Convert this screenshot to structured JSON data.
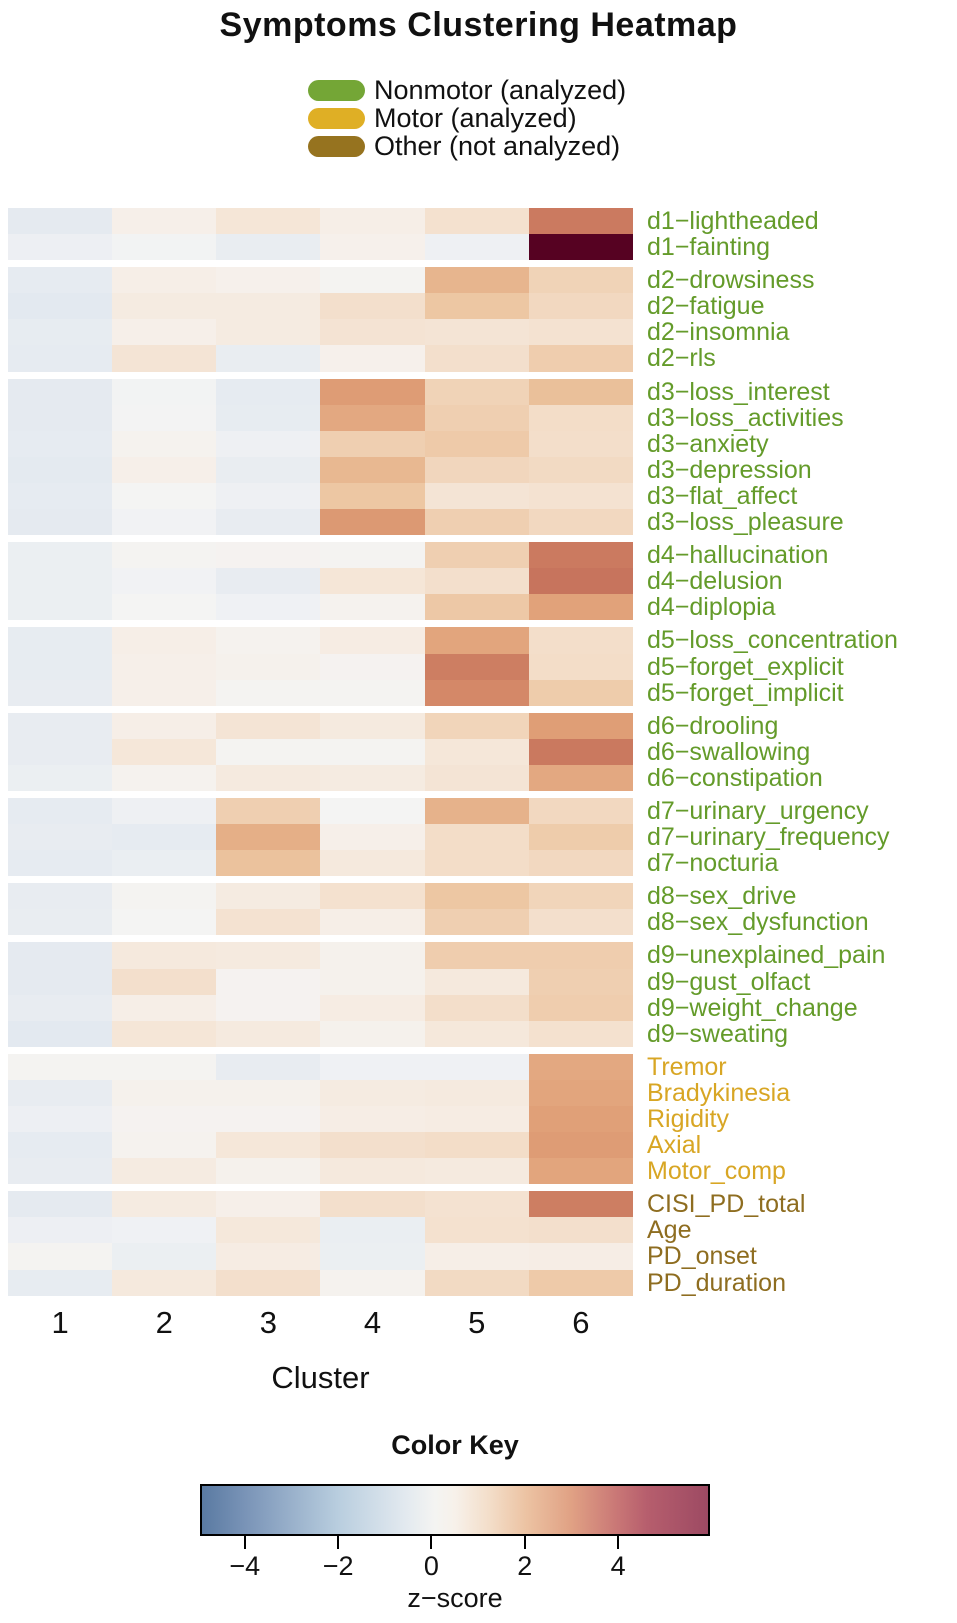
{
  "title": "Symptoms Clustering Heatmap",
  "legend": {
    "items": [
      {
        "name": "nonmotor",
        "label": "Nonmotor (analyzed)",
        "color": "#74a636"
      },
      {
        "name": "motor",
        "label": "Motor (analyzed)",
        "color": "#dfaf25"
      },
      {
        "name": "other",
        "label": "Other (not analyzed)",
        "color": "#96731f"
      }
    ]
  },
  "chart_data": {
    "type": "heatmap",
    "title": "Symptoms Clustering Heatmap",
    "xlabel": "Cluster",
    "x_categories": [
      "1",
      "2",
      "3",
      "4",
      "5",
      "6"
    ],
    "category_label_colors": {
      "nonmotor": "#649b2a",
      "motor": "#d8a624",
      "other": "#8e6d20"
    },
    "rows": [
      {
        "label": "d1−lightheaded",
        "block": "d1",
        "category": "nonmotor",
        "values": [
          -0.7,
          0.3,
          0.75,
          0.35,
          0.95,
          3.4
        ]
      },
      {
        "label": "d1−fainting",
        "block": "d1",
        "category": "nonmotor",
        "values": [
          -0.35,
          -0.1,
          -0.5,
          0.25,
          -0.3,
          8.5
        ]
      },
      {
        "label": "d2−drowsiness",
        "block": "d2",
        "category": "nonmotor",
        "values": [
          -0.65,
          0.35,
          0.25,
          0.05,
          2.1,
          1.4
        ]
      },
      {
        "label": "d2−fatigue",
        "block": "d2",
        "category": "nonmotor",
        "values": [
          -0.8,
          0.5,
          0.5,
          1.0,
          1.75,
          1.25
        ]
      },
      {
        "label": "d2−insomnia",
        "block": "d2",
        "category": "nonmotor",
        "values": [
          -0.6,
          0.3,
          0.5,
          0.85,
          0.8,
          0.9
        ]
      },
      {
        "label": "d2−rls",
        "block": "d2",
        "category": "nonmotor",
        "values": [
          -0.65,
          0.8,
          -0.5,
          0.25,
          1.0,
          1.55
        ]
      },
      {
        "label": "d3−loss_interest",
        "block": "d3",
        "category": "nonmotor",
        "values": [
          -0.7,
          -0.1,
          -0.65,
          2.55,
          1.4,
          1.9
        ]
      },
      {
        "label": "d3−loss_activities",
        "block": "d3",
        "category": "nonmotor",
        "values": [
          -0.7,
          -0.05,
          -0.6,
          2.3,
          1.5,
          1.1
        ]
      },
      {
        "label": "d3−anxiety",
        "block": "d3",
        "category": "nonmotor",
        "values": [
          -0.65,
          0.15,
          -0.3,
          1.5,
          1.65,
          1.05
        ]
      },
      {
        "label": "d3−depression",
        "block": "d3",
        "category": "nonmotor",
        "values": [
          -0.75,
          0.3,
          -0.5,
          2.05,
          1.3,
          1.2
        ]
      },
      {
        "label": "d3−flat_affect",
        "block": "d3",
        "category": "nonmotor",
        "values": [
          -0.65,
          0.0,
          -0.3,
          1.75,
          0.8,
          0.9
        ]
      },
      {
        "label": "d3−loss_pleasure",
        "block": "d3",
        "category": "nonmotor",
        "values": [
          -0.7,
          -0.15,
          -0.55,
          2.6,
          1.5,
          1.25
        ]
      },
      {
        "label": "d4−hallucination",
        "block": "d4",
        "category": "nonmotor",
        "values": [
          -0.4,
          0.05,
          0.1,
          0.05,
          1.5,
          3.4
        ]
      },
      {
        "label": "d4−delusion",
        "block": "d4",
        "category": "nonmotor",
        "values": [
          -0.4,
          -0.15,
          -0.55,
          0.75,
          1.0,
          3.6
        ]
      },
      {
        "label": "d4−diplopia",
        "block": "d4",
        "category": "nonmotor",
        "values": [
          -0.4,
          0.0,
          -0.25,
          0.15,
          1.7,
          2.4
        ]
      },
      {
        "label": "d5−loss_concentration",
        "block": "d5",
        "category": "nonmotor",
        "values": [
          -0.6,
          0.35,
          0.15,
          0.45,
          2.35,
          1.05
        ]
      },
      {
        "label": "d5−forget_explicit",
        "block": "d5",
        "category": "nonmotor",
        "values": [
          -0.6,
          0.3,
          0.2,
          0.1,
          3.3,
          1.1
        ]
      },
      {
        "label": "d5−forget_implicit",
        "block": "d5",
        "category": "nonmotor",
        "values": [
          -0.55,
          0.3,
          0.05,
          0.05,
          3.0,
          1.6
        ]
      },
      {
        "label": "d6−drooling",
        "block": "d6",
        "category": "nonmotor",
        "values": [
          -0.55,
          0.35,
          0.8,
          0.55,
          1.35,
          2.5
        ]
      },
      {
        "label": "d6−swallowing",
        "block": "d6",
        "category": "nonmotor",
        "values": [
          -0.55,
          0.7,
          0.05,
          0.05,
          0.7,
          3.45
        ]
      },
      {
        "label": "d6−constipation",
        "block": "d6",
        "category": "nonmotor",
        "values": [
          -0.4,
          0.15,
          0.55,
          0.5,
          0.8,
          2.3
        ]
      },
      {
        "label": "d7−urinary_urgency",
        "block": "d7",
        "category": "nonmotor",
        "values": [
          -0.65,
          -0.3,
          1.5,
          0.0,
          2.15,
          1.25
        ]
      },
      {
        "label": "d7−urinary_frequency",
        "block": "d7",
        "category": "nonmotor",
        "values": [
          -0.55,
          -0.65,
          2.2,
          0.3,
          1.1,
          1.6
        ]
      },
      {
        "label": "d7−nocturia",
        "block": "d7",
        "category": "nonmotor",
        "values": [
          -0.65,
          -0.45,
          1.85,
          0.6,
          1.1,
          1.25
        ]
      },
      {
        "label": "d8−sex_drive",
        "block": "d8",
        "category": "nonmotor",
        "values": [
          -0.55,
          0.05,
          0.5,
          0.95,
          1.75,
          1.35
        ]
      },
      {
        "label": "d8−sex_dysfunction",
        "block": "d8",
        "category": "nonmotor",
        "values": [
          -0.5,
          0.0,
          0.9,
          0.35,
          1.5,
          1.0
        ]
      },
      {
        "label": "d9−unexplained_pain",
        "block": "d9",
        "category": "nonmotor",
        "values": [
          -0.7,
          0.6,
          0.55,
          0.2,
          1.55,
          1.55
        ]
      },
      {
        "label": "d9−gust_olfact",
        "block": "d9",
        "category": "nonmotor",
        "values": [
          -0.7,
          1.0,
          0.1,
          0.2,
          0.6,
          1.5
        ]
      },
      {
        "label": "d9−weight_change",
        "block": "d9",
        "category": "nonmotor",
        "values": [
          -0.55,
          0.35,
          0.1,
          0.45,
          1.05,
          1.55
        ]
      },
      {
        "label": "d9−sweating",
        "block": "d9",
        "category": "nonmotor",
        "values": [
          -0.8,
          0.75,
          0.55,
          0.2,
          0.65,
          0.95
        ]
      },
      {
        "label": "Tremor",
        "block": "motor",
        "category": "motor",
        "values": [
          0.05,
          0.05,
          -0.55,
          -0.25,
          -0.25,
          2.3
        ]
      },
      {
        "label": "Bradykinesia",
        "block": "motor",
        "category": "motor",
        "values": [
          -0.55,
          0.2,
          0.2,
          0.5,
          0.55,
          2.35
        ]
      },
      {
        "label": "Rigidity",
        "block": "motor",
        "category": "motor",
        "values": [
          -0.35,
          0.1,
          0.1,
          0.4,
          0.45,
          2.45
        ]
      },
      {
        "label": "Axial",
        "block": "motor",
        "category": "motor",
        "values": [
          -0.65,
          0.15,
          0.7,
          1.0,
          1.1,
          2.55
        ]
      },
      {
        "label": "Motor_comp",
        "block": "motor",
        "category": "motor",
        "values": [
          -0.55,
          0.5,
          0.2,
          0.6,
          0.55,
          2.35
        ]
      },
      {
        "label": "CISI_PD_total",
        "block": "other",
        "category": "other",
        "values": [
          -0.7,
          0.5,
          0.3,
          1.0,
          0.9,
          3.3
        ]
      },
      {
        "label": "Age",
        "block": "other",
        "category": "other",
        "values": [
          -0.35,
          -0.25,
          0.65,
          -0.45,
          0.95,
          1.0
        ]
      },
      {
        "label": "PD_onset",
        "block": "other",
        "category": "other",
        "values": [
          0.05,
          -0.4,
          0.45,
          -0.4,
          0.35,
          0.4
        ]
      },
      {
        "label": "PD_duration",
        "block": "other",
        "category": "other",
        "values": [
          -0.6,
          0.6,
          1.0,
          0.15,
          1.2,
          1.65
        ]
      }
    ],
    "value_color_stops": [
      [
        -5.0,
        "#4f75a0"
      ],
      [
        -2.0,
        "#b9cfdf"
      ],
      [
        -0.8,
        "#e3e9f0"
      ],
      [
        -0.5,
        "#e9edf1"
      ],
      [
        -0.25,
        "#eff1f4"
      ],
      [
        0.0,
        "#f4f4f3"
      ],
      [
        0.3,
        "#f6efe9"
      ],
      [
        0.6,
        "#f5e9dd"
      ],
      [
        0.9,
        "#f4e2d1"
      ],
      [
        1.2,
        "#f2dac3"
      ],
      [
        1.5,
        "#efcfb1"
      ],
      [
        1.8,
        "#ecc5a0"
      ],
      [
        2.1,
        "#e7b58e"
      ],
      [
        2.4,
        "#e1a27a"
      ],
      [
        2.7,
        "#da956f"
      ],
      [
        3.0,
        "#d48868"
      ],
      [
        3.4,
        "#cb7a60"
      ],
      [
        3.7,
        "#c5715c"
      ],
      [
        4.0,
        "#bc685f"
      ],
      [
        5.0,
        "#a34e62"
      ],
      [
        6.5,
        "#7c2f4a"
      ],
      [
        8.5,
        "#560222"
      ]
    ],
    "color_key": {
      "title": "Color Key",
      "axis_label": "z−score",
      "tick_values": [
        -4,
        -2,
        0,
        2,
        4
      ],
      "tick_labels": [
        "−4",
        "−2",
        "0",
        "2",
        "4"
      ],
      "range": [
        -4.96,
        5.97
      ],
      "gradient": [
        [
          0,
          "#5a7aa2"
        ],
        [
          9,
          "#7b95b8"
        ],
        [
          27,
          "#b9cedf"
        ],
        [
          40,
          "#e2e9ef"
        ],
        [
          46,
          "#f4f4f2"
        ],
        [
          50,
          "#f7f1ea"
        ],
        [
          57,
          "#f3ddc8"
        ],
        [
          64,
          "#ecc3a3"
        ],
        [
          73,
          "#e0a184"
        ],
        [
          82,
          "#c97776"
        ],
        [
          88,
          "#b65e6d"
        ],
        [
          100,
          "#9d4a63"
        ]
      ]
    }
  }
}
